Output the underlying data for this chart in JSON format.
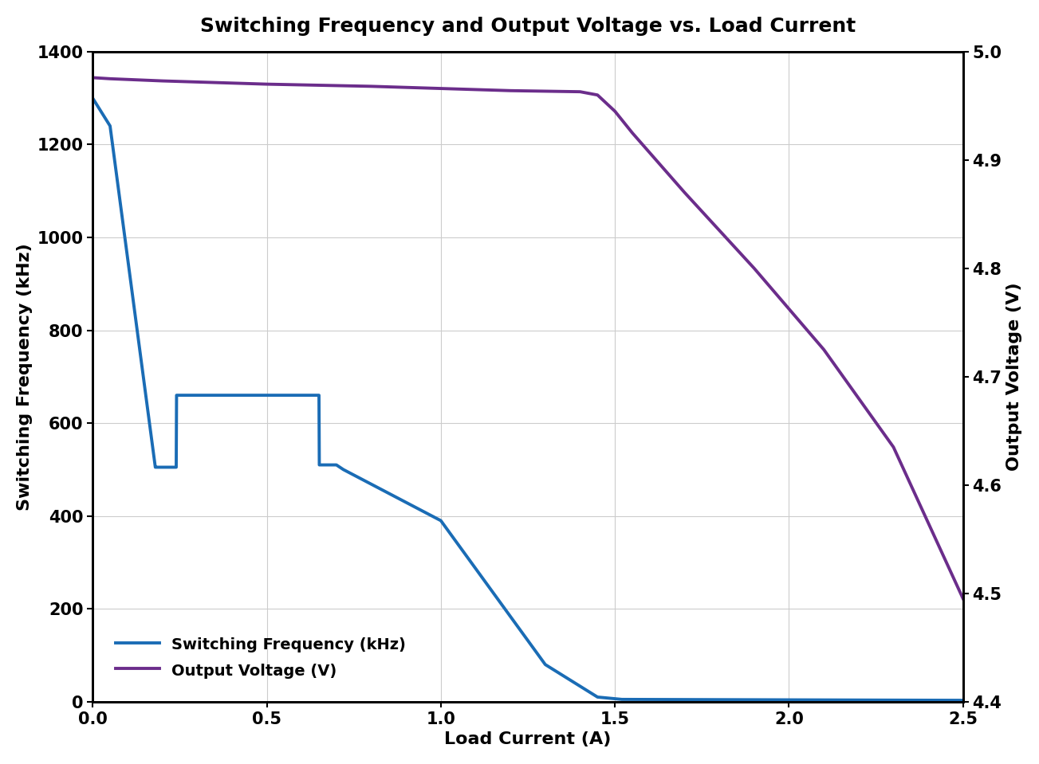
{
  "title": "Switching Frequency and Output Voltage vs. Load Current",
  "xlabel": "Load Current (A)",
  "ylabel_left": "Switching Frequency (kHz)",
  "ylabel_right": "Output Voltage (V)",
  "xlim": [
    0,
    2.5
  ],
  "ylim_left": [
    0,
    1400
  ],
  "ylim_right": [
    4.4,
    5.0
  ],
  "yticks_left": [
    0,
    200,
    400,
    600,
    800,
    1000,
    1200,
    1400
  ],
  "yticks_right": [
    4.4,
    4.5,
    4.6,
    4.7,
    4.8,
    4.9,
    5.0
  ],
  "xticks": [
    0,
    0.5,
    1.0,
    1.5,
    2.0,
    2.5
  ],
  "freq_color": "#1a6cb5",
  "volt_color": "#6b2d8b",
  "legend_labels": [
    "Switching Frequency (kHz)",
    "Output Voltage (V)"
  ],
  "freq_x": [
    0.0,
    0.05,
    0.18,
    0.181,
    0.24,
    0.241,
    0.65,
    0.651,
    0.7,
    0.72,
    1.0,
    1.3,
    1.45,
    1.52,
    2.0,
    2.5
  ],
  "freq_y": [
    1300,
    1240,
    505,
    505,
    505,
    660,
    660,
    510,
    510,
    500,
    390,
    80,
    10,
    5,
    4,
    3
  ],
  "volt_x": [
    0.0,
    0.05,
    0.2,
    0.5,
    0.8,
    1.0,
    1.2,
    1.4,
    1.45,
    1.5,
    1.55,
    1.7,
    1.9,
    2.1,
    2.3,
    2.5
  ],
  "volt_y": [
    4.976,
    4.975,
    4.973,
    4.97,
    4.968,
    4.966,
    4.964,
    4.963,
    4.96,
    4.945,
    4.925,
    4.87,
    4.8,
    4.725,
    4.635,
    4.495
  ],
  "title_fontsize": 18,
  "label_fontsize": 16,
  "tick_fontsize": 15,
  "legend_fontsize": 14,
  "linewidth": 2.8,
  "background_color": "#ffffff",
  "grid_color": "#cccccc"
}
